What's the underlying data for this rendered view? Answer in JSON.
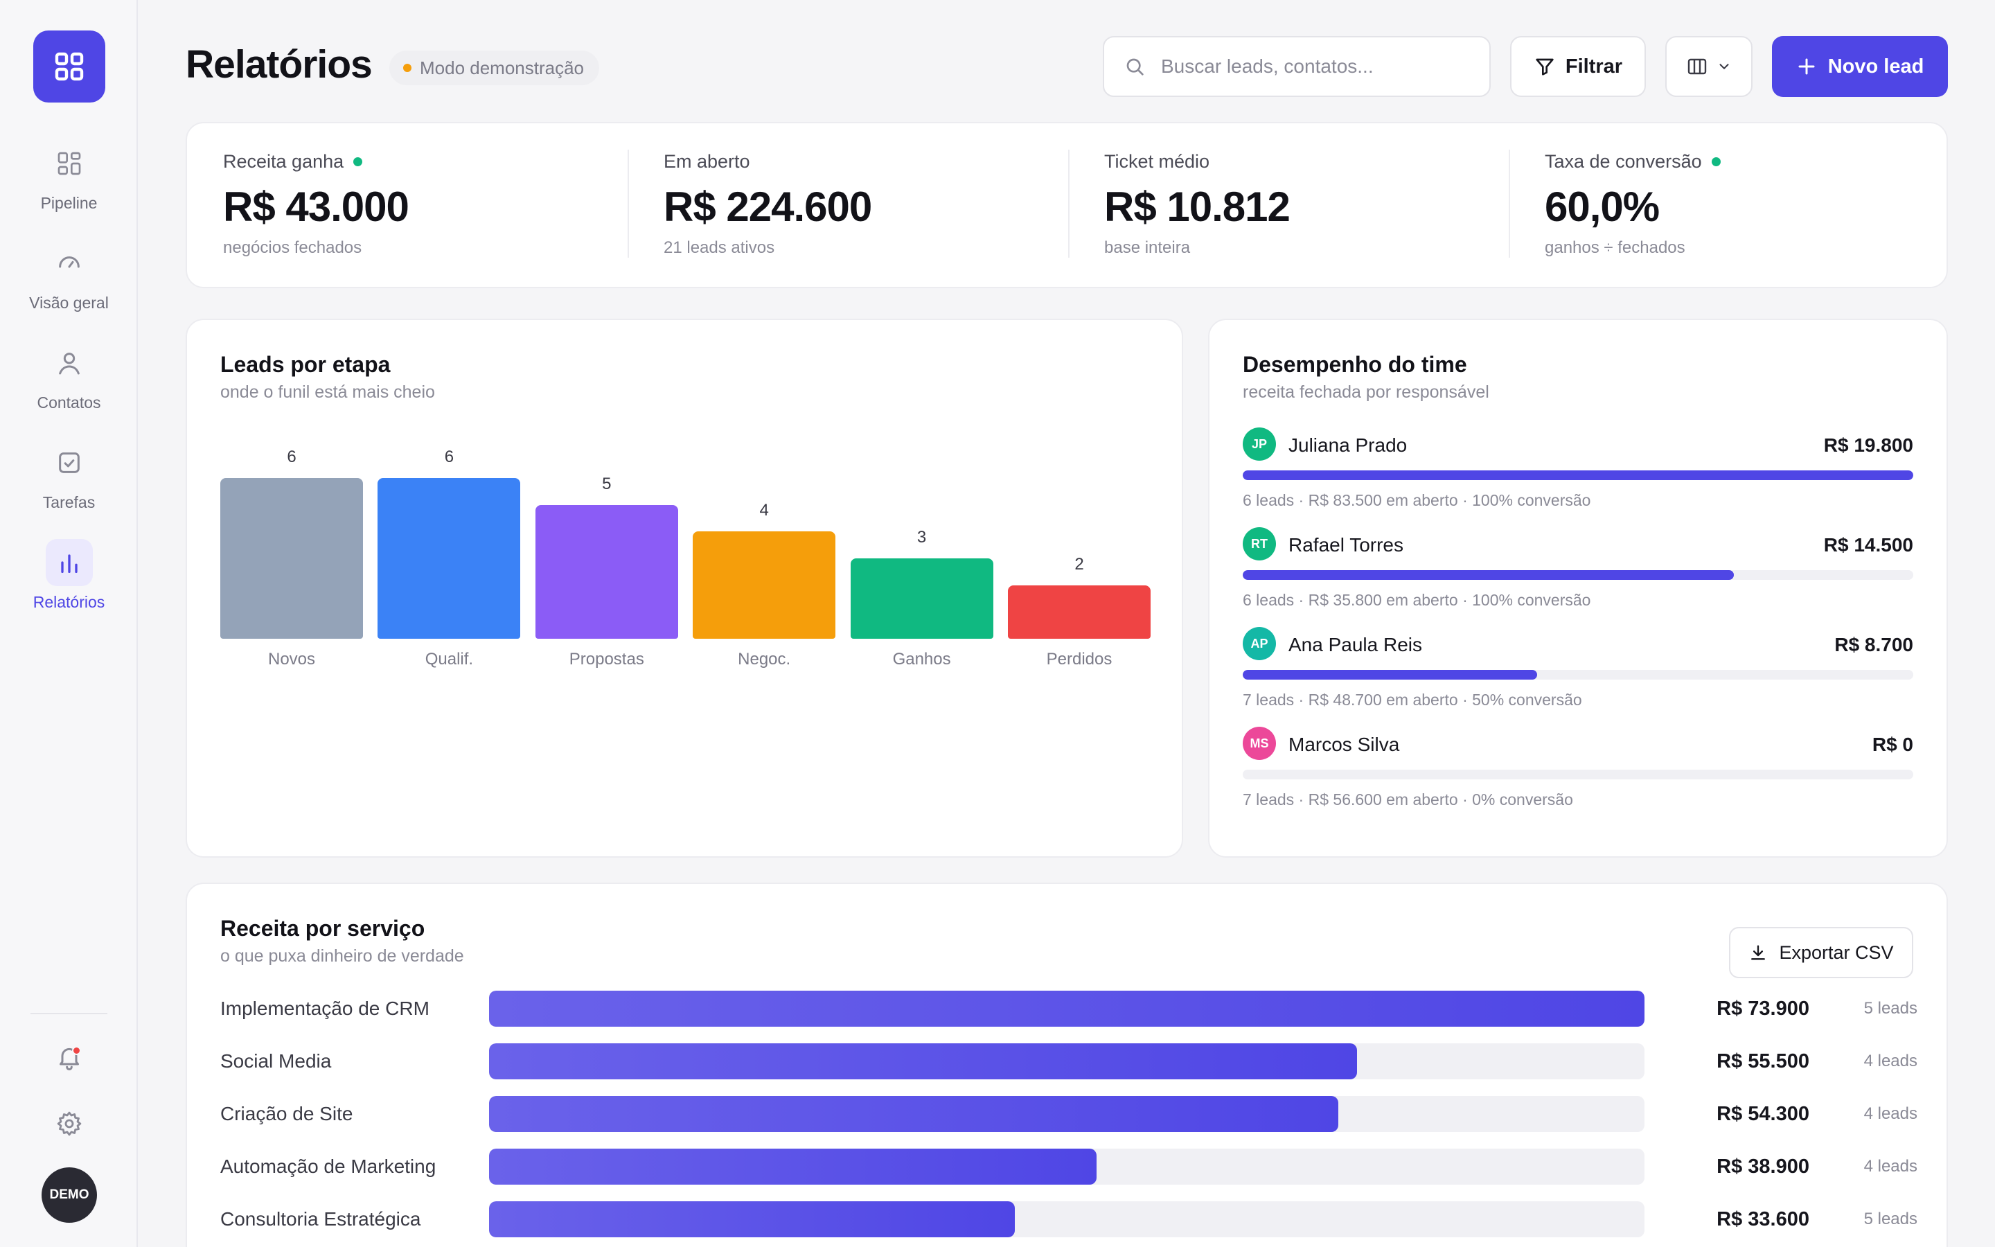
{
  "sidebar": {
    "items": [
      {
        "label": "Pipeline",
        "icon": "pipeline-grid-icon"
      },
      {
        "label": "Visão geral",
        "icon": "gauge-icon"
      },
      {
        "label": "Contatos",
        "icon": "user-icon"
      },
      {
        "label": "Tarefas",
        "icon": "checkbox-icon"
      },
      {
        "label": "Relatórios",
        "icon": "bar-chart-icon",
        "active": true
      }
    ],
    "notifications_icon": "bell-icon",
    "settings_icon": "gear-icon",
    "avatar_label": "DEMO"
  },
  "header": {
    "title": "Relatórios",
    "badge": "Modo demonstração",
    "search_placeholder": "Buscar leads, contatos...",
    "filter_label": "Filtrar",
    "new_lead_label": "Novo lead"
  },
  "kpis": [
    {
      "label": "Receita ganha",
      "value": "R$ 43.000",
      "sub": "negócios fechados",
      "dot": true
    },
    {
      "label": "Em aberto",
      "value": "R$ 224.600",
      "sub": "21 leads ativos",
      "dot": false
    },
    {
      "label": "Ticket médio",
      "value": "R$ 10.812",
      "sub": "base inteira",
      "dot": false
    },
    {
      "label": "Taxa de conversão",
      "value": "60,0%",
      "sub": "ganhos ÷ fechados",
      "dot": true
    }
  ],
  "stages": {
    "title": "Leads por etapa",
    "subtitle": "onde o funil está mais cheio",
    "chart_data": {
      "type": "bar",
      "categories": [
        "Novos",
        "Qualif.",
        "Propostas",
        "Negoc.",
        "Ganhos",
        "Perdidos"
      ],
      "values": [
        6,
        6,
        5,
        4,
        3,
        2
      ],
      "colors": [
        "#94a3b8",
        "#3b82f6",
        "#8b5cf6",
        "#f59e0b",
        "#10b981",
        "#ef4444"
      ],
      "ylim": [
        0,
        6
      ]
    }
  },
  "team": {
    "title": "Desempenho do time",
    "subtitle": "receita fechada por responsável",
    "members": [
      {
        "initials": "JP",
        "name": "Juliana Prado",
        "value": "R$ 19.800",
        "meta": "6 leads · R$ 83.500 em aberto · 100% conversão",
        "share": 1.0,
        "color": "#10b981"
      },
      {
        "initials": "RT",
        "name": "Rafael Torres",
        "value": "R$ 14.500",
        "meta": "6 leads · R$ 35.800 em aberto · 100% conversão",
        "share": 0.732,
        "color": "#10b981"
      },
      {
        "initials": "AP",
        "name": "Ana Paula Reis",
        "value": "R$ 8.700",
        "meta": "7 leads · R$ 48.700 em aberto · 50% conversão",
        "share": 0.439,
        "color": "#14b8a6"
      },
      {
        "initials": "MS",
        "name": "Marcos Silva",
        "value": "R$ 0",
        "meta": "7 leads · R$ 56.600 em aberto · 0% conversão",
        "share": 0.0,
        "color": "#ec4899"
      }
    ]
  },
  "services": {
    "title": "Receita por serviço",
    "subtitle": "o que puxa dinheiro de verdade",
    "export_label": "Exportar CSV",
    "rows": [
      {
        "name": "Implementação de CRM",
        "value": "R$ 73.900",
        "leads": "5 leads",
        "share": 1.0
      },
      {
        "name": "Social Media",
        "value": "R$ 55.500",
        "leads": "4 leads",
        "share": 0.751
      },
      {
        "name": "Criação de Site",
        "value": "R$ 54.300",
        "leads": "4 leads",
        "share": 0.735
      },
      {
        "name": "Automação de Marketing",
        "value": "R$ 38.900",
        "leads": "4 leads",
        "share": 0.526
      },
      {
        "name": "Consultoria Estratégica",
        "value": "R$ 33.600",
        "leads": "5 leads",
        "share": 0.455
      }
    ]
  }
}
